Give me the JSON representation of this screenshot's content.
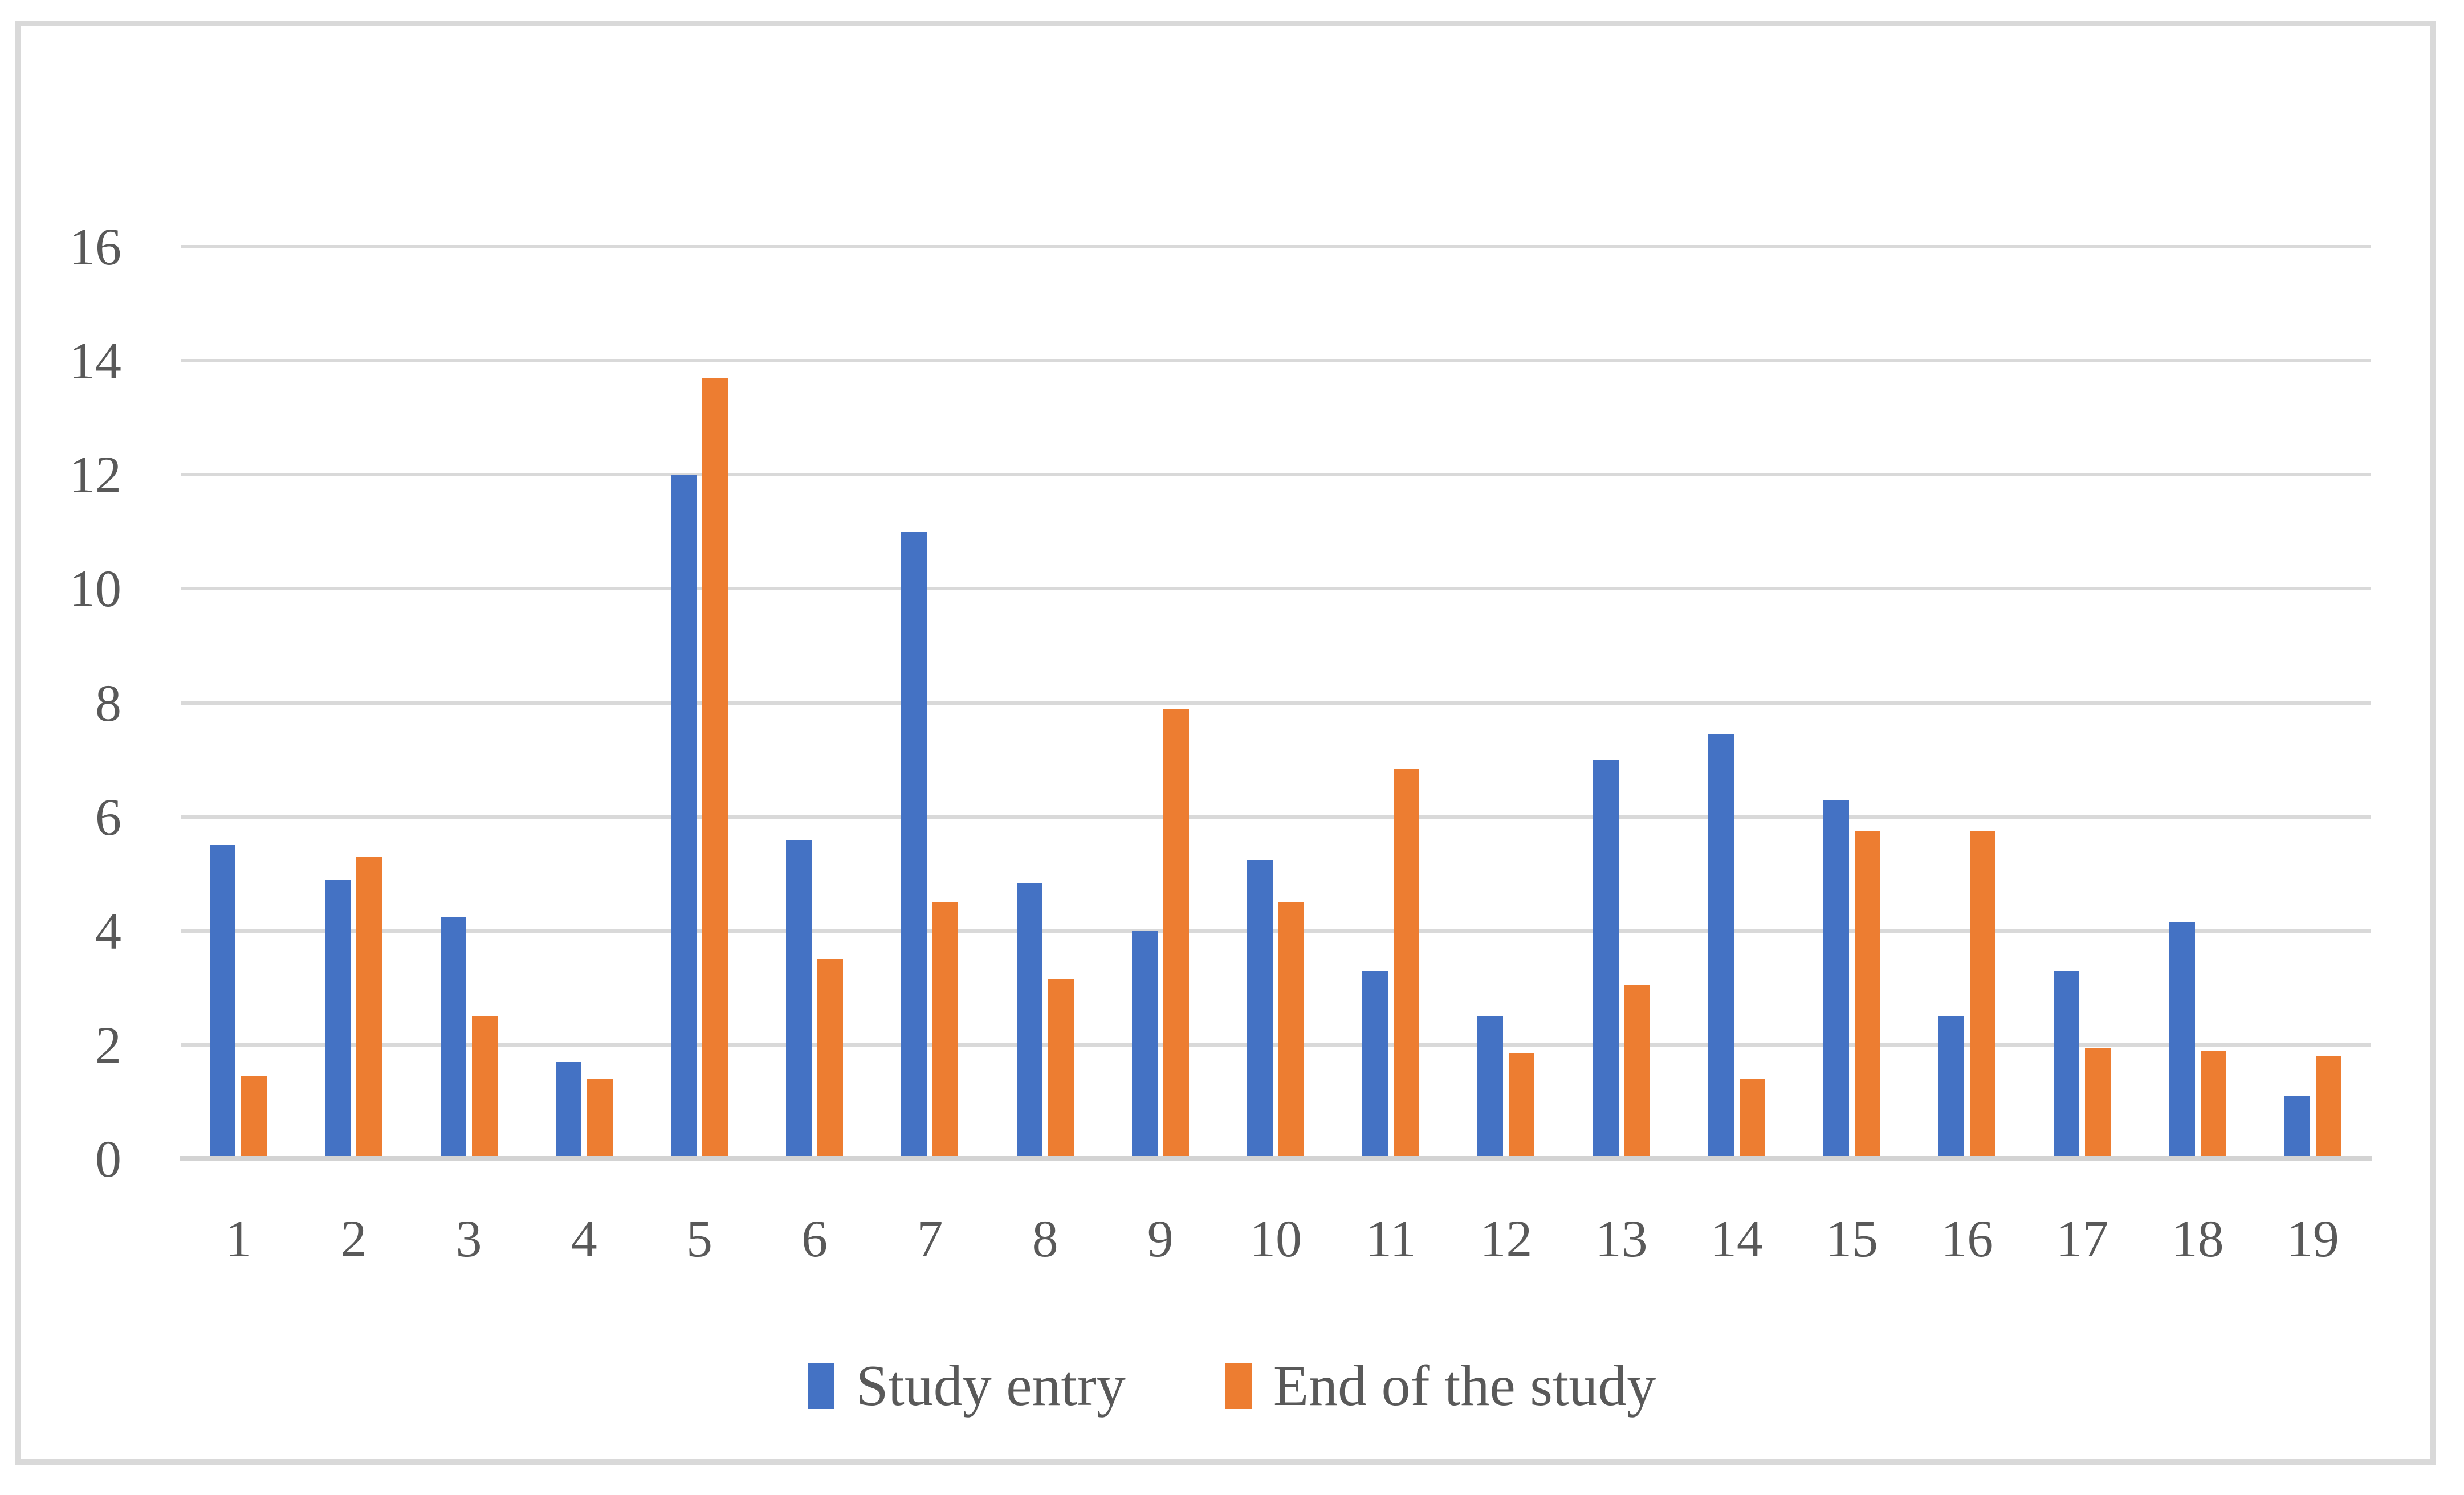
{
  "chart_data": {
    "type": "bar",
    "title": "",
    "xlabel": "",
    "ylabel": "",
    "categories": [
      "1",
      "2",
      "3",
      "4",
      "5",
      "6",
      "7",
      "8",
      "9",
      "10",
      "11",
      "12",
      "13",
      "14",
      "15",
      "16",
      "17",
      "18",
      "19"
    ],
    "series": [
      {
        "name": "Study entry",
        "color": "#4472C4",
        "values": [
          5.5,
          4.9,
          4.25,
          1.7,
          12.0,
          5.6,
          11.0,
          4.85,
          4.0,
          5.25,
          3.3,
          2.5,
          7.0,
          7.45,
          6.3,
          2.5,
          3.3,
          4.15,
          1.1
        ]
      },
      {
        "name": "End of the study",
        "color": "#ED7D31",
        "values": [
          1.45,
          5.3,
          2.5,
          1.4,
          13.7,
          3.5,
          4.5,
          3.15,
          7.9,
          4.5,
          6.85,
          1.85,
          3.05,
          1.4,
          5.75,
          5.75,
          1.95,
          1.9,
          1.8
        ]
      }
    ],
    "ylim": [
      0,
      16
    ],
    "yticks": [
      0,
      2,
      4,
      6,
      8,
      10,
      12,
      14,
      16
    ],
    "grid": true,
    "legend_position": "bottom"
  },
  "colors": {
    "gridline": "#d9d9d9",
    "axis_line": "#d3d3d3",
    "tick_label": "#595959",
    "frame_border": "#d9d9d9",
    "background": "#ffffff"
  }
}
